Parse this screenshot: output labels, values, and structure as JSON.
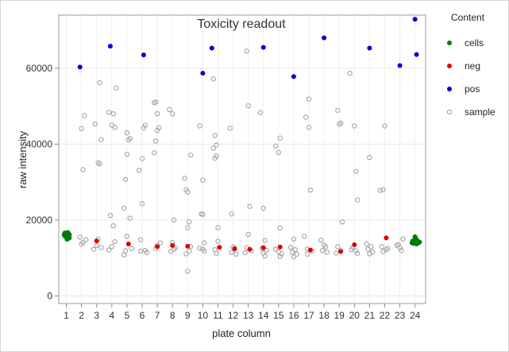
{
  "chart_data": {
    "type": "scatter",
    "title": "Toxicity readout",
    "xlabel": "plate column",
    "ylabel": "raw intensity",
    "xlim": [
      0.5,
      24.7
    ],
    "ylim": [
      -2000,
      74000
    ],
    "x_ticks": [
      "1",
      "2",
      "3",
      "4",
      "5",
      "6",
      "7",
      "8",
      "9",
      "10",
      "11",
      "12",
      "13",
      "14",
      "15",
      "16",
      "17",
      "18",
      "19",
      "20",
      "21",
      "22",
      "23",
      "24"
    ],
    "y_ticks": [
      0,
      20000,
      40000,
      60000
    ],
    "y_tick_labels": [
      "0",
      "20000",
      "40000",
      "60000"
    ],
    "grid": true,
    "legend": {
      "title": "Content",
      "placement": "right"
    },
    "series": [
      {
        "name": "cells",
        "color": "#007a00",
        "marker": "filled",
        "points": [
          [
            0.9,
            16600
          ],
          [
            1.0,
            15400
          ],
          [
            1.0,
            15900
          ],
          [
            1.1,
            15100
          ],
          [
            1.2,
            16200
          ],
          [
            1.05,
            14900
          ],
          [
            0.95,
            16000
          ],
          [
            1.15,
            15600
          ],
          [
            0.85,
            16100
          ],
          [
            1.1,
            16700
          ],
          [
            1.2,
            15300
          ],
          [
            0.9,
            15800
          ],
          [
            1.0,
            16400
          ],
          [
            23.8,
            14000
          ],
          [
            24.0,
            14800
          ],
          [
            24.1,
            13700
          ],
          [
            24.2,
            14300
          ],
          [
            24.0,
            15600
          ],
          [
            23.9,
            13800
          ],
          [
            24.3,
            14200
          ],
          [
            24.1,
            14900
          ],
          [
            23.85,
            14500
          ],
          [
            24.2,
            13900
          ],
          [
            24.05,
            14100
          ]
        ]
      },
      {
        "name": "neg",
        "color": "#e00000",
        "marker": "filled",
        "points": [
          [
            3.0,
            14500
          ],
          [
            5.1,
            13700
          ],
          [
            7.0,
            13000
          ],
          [
            8.0,
            13300
          ],
          [
            9.0,
            13100
          ],
          [
            11.1,
            12800
          ],
          [
            12.1,
            12400
          ],
          [
            13.1,
            12300
          ],
          [
            14.0,
            12700
          ],
          [
            15.1,
            12900
          ],
          [
            17.1,
            12100
          ],
          [
            19.1,
            11700
          ],
          [
            20.0,
            13500
          ],
          [
            22.1,
            15300
          ]
        ]
      },
      {
        "name": "pos",
        "color": "#0000e0",
        "marker": "filled",
        "points": [
          [
            1.9,
            60300
          ],
          [
            3.9,
            65800
          ],
          [
            6.1,
            63500
          ],
          [
            10.0,
            58700
          ],
          [
            10.6,
            65300
          ],
          [
            14.0,
            65500
          ],
          [
            16.0,
            57800
          ],
          [
            18.0,
            68000
          ],
          [
            21.0,
            65300
          ],
          [
            23.0,
            60700
          ],
          [
            24.0,
            72900
          ],
          [
            24.1,
            63600
          ]
        ]
      },
      {
        "name": "sample",
        "color": "#a8a8a8",
        "marker": "open",
        "points": [
          [
            2.1,
            33300
          ],
          [
            2.0,
            44100
          ],
          [
            2.2,
            47500
          ],
          [
            1.9,
            15500
          ],
          [
            2.3,
            14800
          ],
          [
            2.1,
            14100
          ],
          [
            2.0,
            13600
          ],
          [
            2.9,
            45300
          ],
          [
            3.1,
            35100
          ],
          [
            3.2,
            34800
          ],
          [
            3.3,
            41200
          ],
          [
            3.2,
            56200
          ],
          [
            2.8,
            12300
          ],
          [
            3.0,
            13300
          ],
          [
            3.3,
            12700
          ],
          [
            3.1,
            15000
          ],
          [
            3.8,
            48400
          ],
          [
            4.0,
            45000
          ],
          [
            4.2,
            44400
          ],
          [
            4.3,
            54800
          ],
          [
            4.1,
            48000
          ],
          [
            3.9,
            21200
          ],
          [
            4.1,
            18500
          ],
          [
            4.0,
            13000
          ],
          [
            4.2,
            14300
          ],
          [
            3.8,
            12100
          ],
          [
            5.0,
            43000
          ],
          [
            5.1,
            41100
          ],
          [
            5.2,
            41500
          ],
          [
            5.0,
            37300
          ],
          [
            4.9,
            30700
          ],
          [
            4.8,
            23100
          ],
          [
            5.2,
            20500
          ],
          [
            5.0,
            15700
          ],
          [
            4.9,
            11900
          ],
          [
            5.3,
            12500
          ],
          [
            4.8,
            10800
          ],
          [
            5.8,
            33100
          ],
          [
            6.0,
            36200
          ],
          [
            6.1,
            44300
          ],
          [
            6.2,
            45000
          ],
          [
            6.0,
            24300
          ],
          [
            5.9,
            14800
          ],
          [
            6.2,
            12000
          ],
          [
            6.3,
            11400
          ],
          [
            5.9,
            11800
          ],
          [
            6.8,
            50900
          ],
          [
            6.9,
            51100
          ],
          [
            7.0,
            48000
          ],
          [
            7.1,
            44300
          ],
          [
            7.0,
            43600
          ],
          [
            6.9,
            40800
          ],
          [
            6.8,
            37700
          ],
          [
            7.2,
            14000
          ],
          [
            7.0,
            13400
          ],
          [
            6.9,
            12500
          ],
          [
            7.8,
            49100
          ],
          [
            8.0,
            48000
          ],
          [
            8.1,
            20000
          ],
          [
            8.0,
            14100
          ],
          [
            8.2,
            12700
          ],
          [
            7.9,
            11700
          ],
          [
            8.1,
            12300
          ],
          [
            8.8,
            31000
          ],
          [
            8.9,
            28000
          ],
          [
            9.0,
            27400
          ],
          [
            9.2,
            37100
          ],
          [
            9.1,
            19500
          ],
          [
            9.0,
            18000
          ],
          [
            9.2,
            13000
          ],
          [
            8.9,
            11100
          ],
          [
            9.0,
            6500
          ],
          [
            9.1,
            11800
          ],
          [
            9.8,
            44800
          ],
          [
            10.0,
            30500
          ],
          [
            10.0,
            21500
          ],
          [
            9.9,
            21600
          ],
          [
            10.1,
            14000
          ],
          [
            10.1,
            11800
          ],
          [
            10.0,
            12300
          ],
          [
            9.8,
            12600
          ],
          [
            10.7,
            57200
          ],
          [
            10.8,
            42300
          ],
          [
            10.9,
            39800
          ],
          [
            10.7,
            38900
          ],
          [
            10.8,
            36300
          ],
          [
            10.9,
            36900
          ],
          [
            11.0,
            18000
          ],
          [
            10.8,
            12200
          ],
          [
            10.9,
            11200
          ],
          [
            11.0,
            14400
          ],
          [
            11.8,
            44200
          ],
          [
            11.9,
            21600
          ],
          [
            12.0,
            12900
          ],
          [
            12.1,
            12700
          ],
          [
            11.9,
            11500
          ],
          [
            12.2,
            11000
          ],
          [
            12.9,
            64500
          ],
          [
            13.0,
            50100
          ],
          [
            13.1,
            23600
          ],
          [
            13.0,
            16200
          ],
          [
            12.9,
            12700
          ],
          [
            13.2,
            11900
          ],
          [
            12.8,
            11400
          ],
          [
            13.8,
            48300
          ],
          [
            14.0,
            23100
          ],
          [
            14.1,
            14600
          ],
          [
            13.9,
            12500
          ],
          [
            14.2,
            12000
          ],
          [
            14.0,
            11300
          ],
          [
            14.1,
            10500
          ],
          [
            14.8,
            39500
          ],
          [
            15.1,
            41600
          ],
          [
            15.0,
            37800
          ],
          [
            15.1,
            17900
          ],
          [
            14.8,
            12300
          ],
          [
            15.0,
            11600
          ],
          [
            15.2,
            11100
          ],
          [
            15.1,
            10400
          ],
          [
            15.8,
            12800
          ],
          [
            16.0,
            15000
          ],
          [
            16.1,
            12200
          ],
          [
            15.9,
            11500
          ],
          [
            16.2,
            11000
          ],
          [
            16.0,
            10300
          ],
          [
            16.7,
            15700
          ],
          [
            16.8,
            47100
          ],
          [
            17.0,
            51900
          ],
          [
            17.0,
            44400
          ],
          [
            17.1,
            27900
          ],
          [
            16.9,
            12400
          ],
          [
            17.2,
            11800
          ],
          [
            16.9,
            11000
          ],
          [
            17.8,
            14700
          ],
          [
            18.0,
            13400
          ],
          [
            18.1,
            12900
          ],
          [
            17.9,
            12000
          ],
          [
            18.2,
            11500
          ],
          [
            18.9,
            48900
          ],
          [
            19.0,
            45300
          ],
          [
            19.1,
            45500
          ],
          [
            19.2,
            19500
          ],
          [
            18.9,
            13000
          ],
          [
            19.1,
            12000
          ],
          [
            18.8,
            11300
          ],
          [
            19.7,
            58700
          ],
          [
            20.0,
            44800
          ],
          [
            20.1,
            32800
          ],
          [
            20.2,
            25300
          ],
          [
            19.9,
            12800
          ],
          [
            20.1,
            11900
          ],
          [
            20.2,
            11200
          ],
          [
            19.8,
            12200
          ],
          [
            20.8,
            13700
          ],
          [
            21.0,
            36500
          ],
          [
            21.1,
            13000
          ],
          [
            20.9,
            12300
          ],
          [
            21.2,
            11600
          ],
          [
            21.0,
            11100
          ],
          [
            21.7,
            27800
          ],
          [
            21.9,
            28000
          ],
          [
            22.0,
            44800
          ],
          [
            21.8,
            13000
          ],
          [
            22.1,
            12200
          ],
          [
            21.9,
            11700
          ],
          [
            22.2,
            12500
          ],
          [
            22.8,
            13300
          ],
          [
            23.0,
            12700
          ],
          [
            23.1,
            12000
          ],
          [
            22.9,
            13500
          ],
          [
            23.2,
            15000
          ]
        ]
      }
    ]
  }
}
